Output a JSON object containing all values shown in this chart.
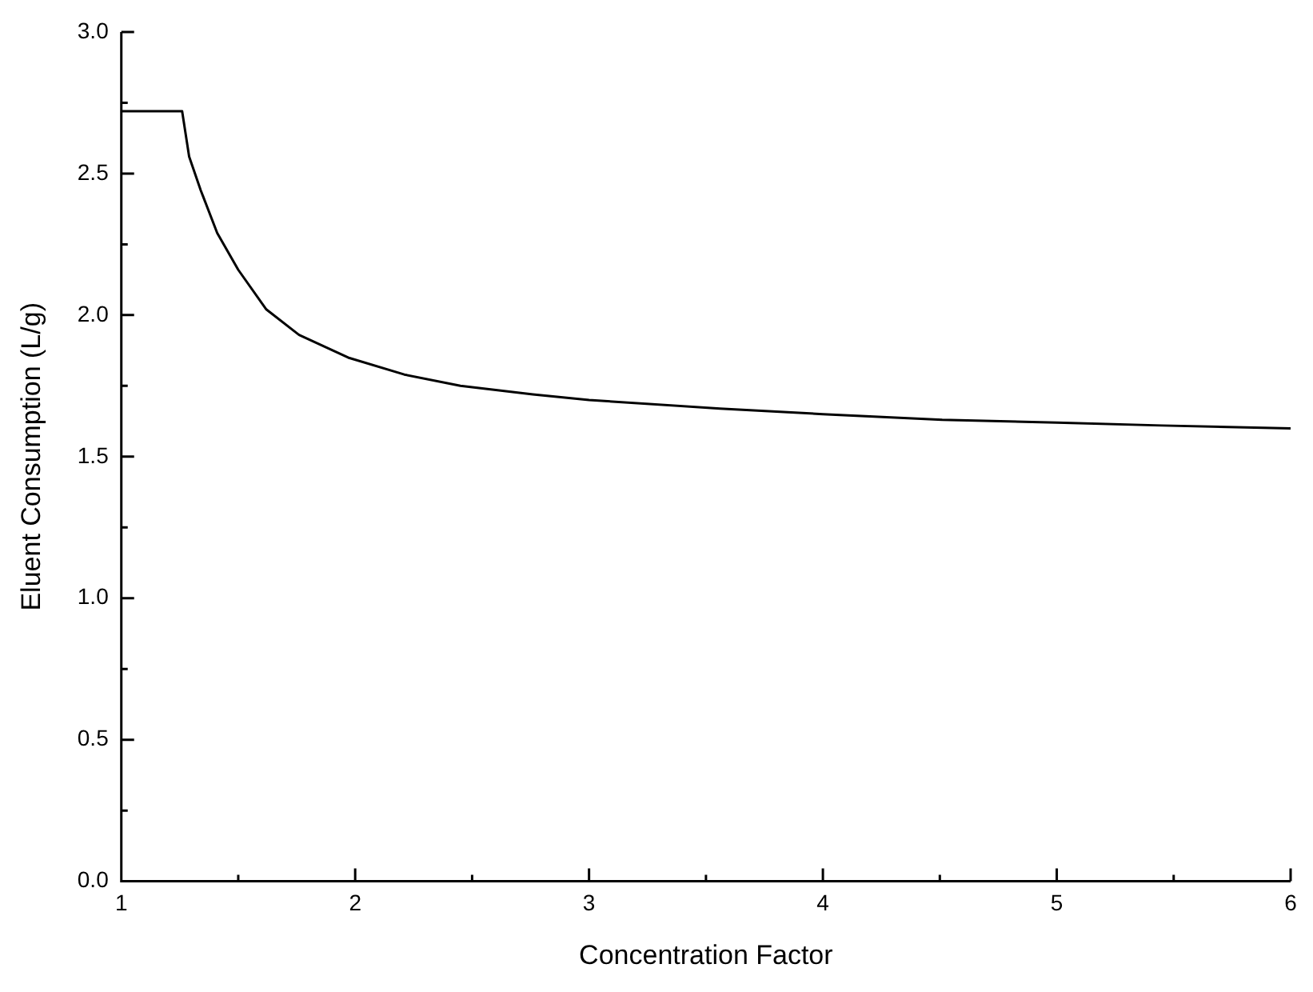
{
  "chart_data": {
    "type": "line",
    "xlabel": "Concentration Factor",
    "ylabel": "Eluent Consumption (L/g)",
    "x": [
      1,
      1.26,
      1.29,
      1.34,
      1.41,
      1.5,
      1.62,
      1.76,
      1.97,
      2.21,
      2.45,
      2.76,
      3,
      3.56,
      4,
      4.51,
      5,
      5.45,
      6
    ],
    "series": [
      {
        "color": "#000000",
        "values": [
          2.72,
          2.72,
          2.56,
          2.44,
          2.29,
          2.16,
          2.02,
          1.93,
          1.85,
          1.79,
          1.75,
          1.72,
          1.7,
          1.67,
          1.65,
          1.63,
          1.62,
          1.61,
          1.6
        ]
      }
    ],
    "xlim": [
      1,
      6
    ],
    "xticks": [
      1,
      {
        "value": 1.5,
        "label": null
      },
      2,
      {
        "value": 2.5,
        "label": null
      },
      3,
      {
        "value": 3.5,
        "label": null
      },
      4,
      {
        "value": 4.5,
        "label": null
      },
      5,
      {
        "value": 5.5,
        "label": null
      },
      6
    ],
    "ylim": [
      0,
      3
    ],
    "yticks": [
      {
        "value": 0,
        "label": "0.0"
      },
      {
        "value": 0.25,
        "label": null
      },
      {
        "value": 0.5,
        "label": "0.5"
      },
      {
        "value": 0.75,
        "label": null
      },
      {
        "value": 1,
        "label": "1.0"
      },
      {
        "value": 1.25,
        "label": null
      },
      {
        "value": 1.5,
        "label": "1.5"
      },
      {
        "value": 1.75,
        "label": null
      },
      {
        "value": 2,
        "label": "2.0"
      },
      {
        "value": 2.25,
        "label": null
      },
      {
        "value": 2.5,
        "label": "2.5"
      },
      {
        "value": 2.75,
        "label": null
      },
      {
        "value": 3,
        "label": "3.0"
      }
    ],
    "grid": false,
    "legend": false,
    "marker": "none",
    "line_style": "solid"
  }
}
